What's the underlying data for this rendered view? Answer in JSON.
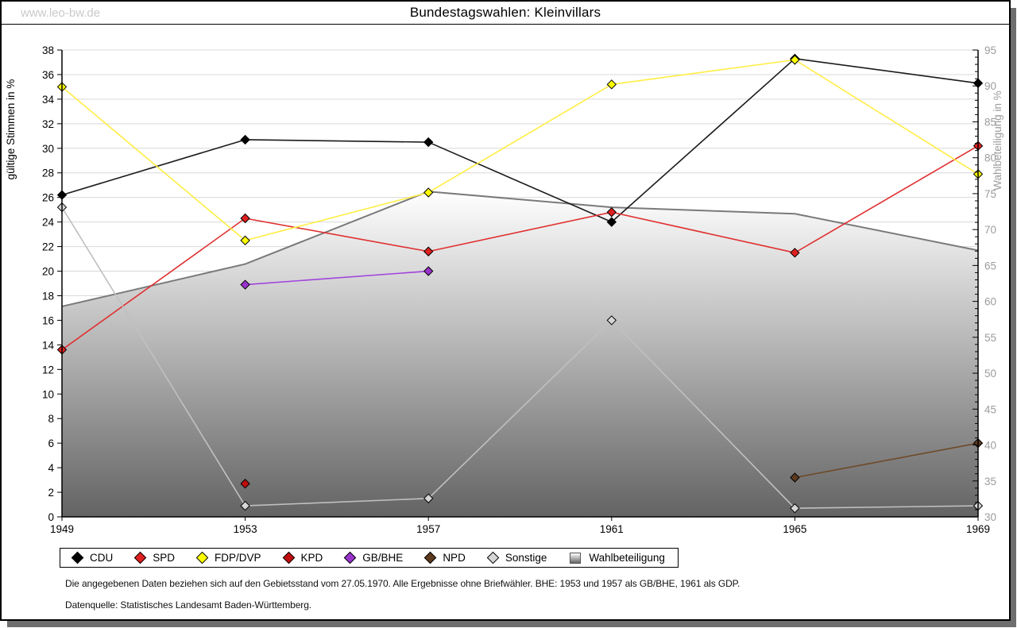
{
  "watermark": "www.leo-bw.de",
  "title": "Bundestagswahlen: Kleinvillars",
  "chart_data": {
    "type": "line",
    "x_categories": [
      "1949",
      "1953",
      "1957",
      "1961",
      "1965",
      "1969"
    ],
    "left_axis": {
      "label": "gültige Stimmen in %",
      "min": 0,
      "max": 38,
      "tick_step": 2
    },
    "right_axis": {
      "label": "Wahlbeteiligung in %",
      "min": 30,
      "max": 95,
      "tick_step": 5,
      "minor_step": 1
    },
    "grid": "horizontal-only",
    "legend_position": "bottom",
    "series": [
      {
        "name": "CDU",
        "axis": "left",
        "line_color": "#1a1a1a",
        "marker_color": "#000000",
        "values": [
          26.2,
          30.7,
          30.5,
          24.0,
          37.3,
          35.3
        ]
      },
      {
        "name": "SPD",
        "axis": "left",
        "line_color": "#e03030",
        "marker_color": "#e02020",
        "values": [
          13.6,
          24.3,
          21.6,
          24.8,
          21.5,
          30.2
        ]
      },
      {
        "name": "FDP/DVP",
        "axis": "left",
        "line_color": "#ffee44",
        "marker_color": "#ffff00",
        "values": [
          35.0,
          22.5,
          26.4,
          35.2,
          37.2,
          27.9
        ]
      },
      {
        "name": "KPD",
        "axis": "left",
        "line_color": "#c00d0d",
        "marker_color": "#c00d0d",
        "values": [
          null,
          2.7,
          null,
          null,
          null,
          null
        ]
      },
      {
        "name": "GB/BHE",
        "axis": "left",
        "line_color": "#a044dd",
        "marker_color": "#9933cc",
        "values": [
          null,
          18.9,
          20.0,
          null,
          null,
          null
        ]
      },
      {
        "name": "NPD",
        "axis": "left",
        "line_color": "#6e4a28",
        "marker_color": "#5e3a1e",
        "values": [
          null,
          null,
          null,
          null,
          3.2,
          6.0
        ]
      },
      {
        "name": "Sonstige",
        "axis": "left",
        "line_color": "#c0c0c0",
        "marker_color": "#d6d6d6",
        "values": [
          25.2,
          0.9,
          1.5,
          16.0,
          0.7,
          0.9
        ]
      }
    ],
    "area_series": {
      "name": "Wahlbeteiligung",
      "axis": "right",
      "values": [
        59.3,
        65.2,
        75.3,
        73.1,
        72.2,
        67.1
      ],
      "line_color": "#7a7a7a",
      "fill_top": "#ffffff",
      "fill_bottom": "#636363"
    },
    "colors": {
      "grid": "#d9d9d9",
      "axis": "#000000",
      "right_axis_text": "#9c9c9c"
    }
  },
  "legend": {
    "items": [
      {
        "label": "CDU",
        "marker": "diamond",
        "color": "#000000"
      },
      {
        "label": "SPD",
        "marker": "diamond",
        "color": "#e02020"
      },
      {
        "label": "FDP/DVP",
        "marker": "diamond",
        "color": "#ffff00"
      },
      {
        "label": "KPD",
        "marker": "diamond",
        "color": "#c00d0d"
      },
      {
        "label": "GB/BHE",
        "marker": "diamond",
        "color": "#9933cc"
      },
      {
        "label": "NPD",
        "marker": "diamond",
        "color": "#5e3a1e"
      },
      {
        "label": "Sonstige",
        "marker": "diamond",
        "color": "#d6d6d6"
      },
      {
        "label": "Wahlbeteiligung",
        "marker": "square",
        "color": "#aaaaaa"
      }
    ]
  },
  "notes": [
    "Die angegebenen Daten beziehen sich auf den Gebietsstand vom 27.05.1970. Alle Ergebnisse ohne Briefwähler. BHE: 1953 und 1957 als GB/BHE, 1961 als GDP.",
    "Datenquelle: Statistisches Landesamt Baden-Württemberg."
  ]
}
